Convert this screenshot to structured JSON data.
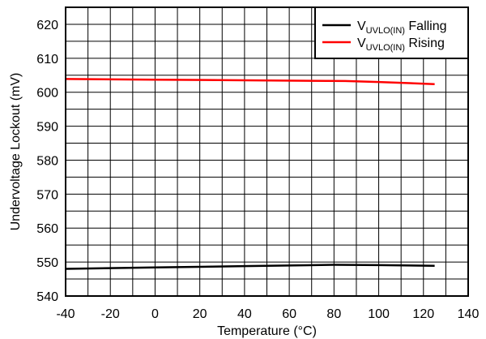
{
  "chart_data": {
    "type": "line",
    "title": "",
    "xlabel": "Temperature (°C)",
    "ylabel": "Undervoltage Lockout (mV)",
    "xlim": [
      -40,
      140
    ],
    "ylim": [
      540,
      625
    ],
    "xticks": [
      -40,
      -20,
      0,
      20,
      40,
      60,
      80,
      100,
      120,
      140
    ],
    "yticks": [
      540,
      550,
      560,
      570,
      580,
      590,
      600,
      610,
      620
    ],
    "x_minor_step": 10,
    "y_minor_step": 5,
    "grid": true,
    "legend": "top-right",
    "series": [
      {
        "name": "Falling",
        "label_parts": [
          "V",
          "UVLO(IN)",
          " Falling"
        ],
        "color": "#000000",
        "x": [
          -40,
          0,
          40,
          80,
          100,
          125
        ],
        "y": [
          548.0,
          548.4,
          548.8,
          549.2,
          549.1,
          548.9
        ]
      },
      {
        "name": "Rising",
        "label_parts": [
          "V",
          "UVLO(IN)",
          " Rising"
        ],
        "color": "#ff0000",
        "x": [
          -40,
          0,
          40,
          85,
          100,
          125
        ],
        "y": [
          603.9,
          603.7,
          603.5,
          603.3,
          603.0,
          602.4
        ]
      }
    ]
  }
}
